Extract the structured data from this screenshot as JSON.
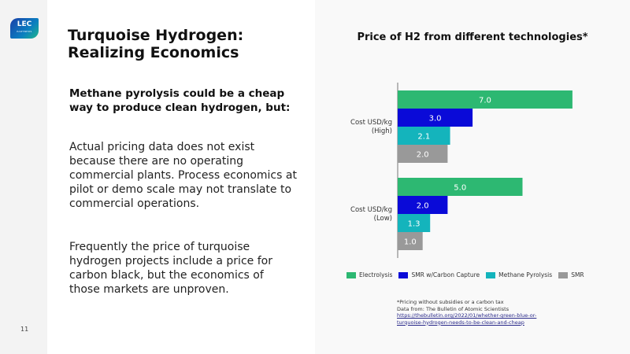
{
  "logo": {
    "text": "LEC",
    "subtext": "PARTNERS"
  },
  "page_number": "11",
  "title": "Turquoise Hydrogen: Realizing Economics",
  "subheading": "Methane pyrolysis could be a cheap way to produce clean hydrogen, but:",
  "paragraphs": [
    "Actual pricing data does not exist because there are no operating commercial plants. Process economics at pilot or demo scale may not translate to commercial operations.",
    "Frequently the price of turquoise hydrogen projects include a price for carbon black, but the economics of those markets are unproven."
  ],
  "chart_data": {
    "type": "bar",
    "orientation": "horizontal",
    "title": "Price of H2 from different technologies*",
    "categories": [
      "Cost USD/kg (High)",
      "Cost USD/kg (Low)"
    ],
    "series": [
      {
        "name": "Electrolysis",
        "color": "#2db872",
        "values": [
          7.0,
          5.0
        ]
      },
      {
        "name": "SMR w/Carbon Capture",
        "color": "#0a0ad8",
        "values": [
          3.0,
          2.0
        ]
      },
      {
        "name": "Methane Pyrolysis",
        "color": "#14b4bc",
        "values": [
          2.1,
          1.3
        ]
      },
      {
        "name": "SMR",
        "color": "#999999",
        "values": [
          2.0,
          1.0
        ]
      }
    ],
    "data_labels": true,
    "grid": false,
    "legend_position": "bottom"
  },
  "notes": {
    "line1": "*Pricing without subsidies or a carbon tax",
    "line2": "Data from: The Bulletin of Atomic Scientists",
    "link1": "https://thebulletin.org/2022/01/whether-green-blue-or-",
    "link2": "turquoise-hydrogen-needs-to-be-clean-and-cheap"
  }
}
